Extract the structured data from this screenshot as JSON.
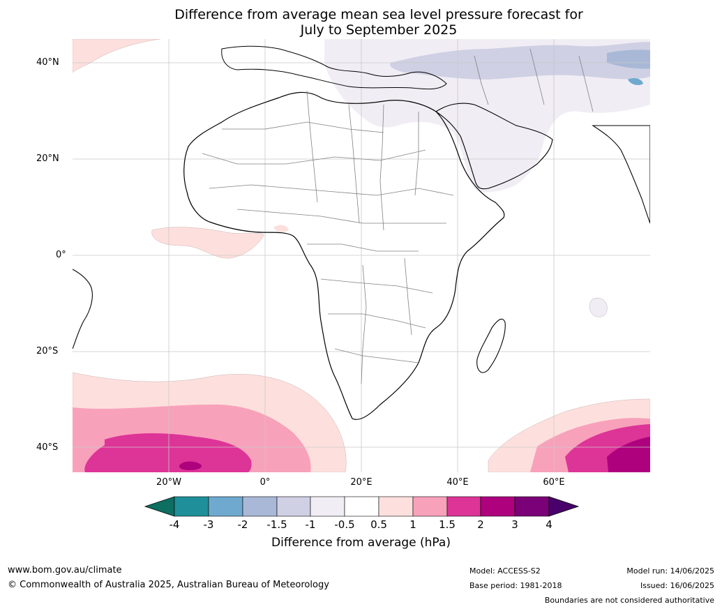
{
  "title_line1": "Difference from average mean sea level pressure forecast for",
  "title_line2": "July to September 2025",
  "lat_labels": [
    "40°N",
    "20°N",
    "0°",
    "20°S",
    "40°S"
  ],
  "lon_labels": [
    "20°W",
    "0°",
    "20°E",
    "40°E",
    "60°E"
  ],
  "colorbar": {
    "label": "Difference from average (hPa)",
    "ticks": [
      "-4",
      "-3",
      "-2",
      "-1.5",
      "-1",
      "-0.5",
      "0.5",
      "1",
      "1.5",
      "2",
      "3",
      "4"
    ],
    "colors": [
      "#1f9099",
      "#6fa9cf",
      "#a8b8d6",
      "#cfd0e4",
      "#f1edf4",
      "#ffffff",
      "#fde0dd",
      "#f8a1bb",
      "#dd3497",
      "#ae017e",
      "#7a0177"
    ],
    "under_color": "#0e6e60",
    "over_color": "#49006a"
  },
  "footer": {
    "url": "www.bom.gov.au/climate",
    "copyright": "© Commonwealth of Australia 2025, Australian Bureau of Meteorology",
    "model": "Model: ACCESS-S2",
    "base_period": "Base period: 1981-2018",
    "model_run": "Model run: 14/06/2025",
    "issued": "Issued: 16/06/2025",
    "disclaimer": "Boundaries are not considered authoritative"
  }
}
